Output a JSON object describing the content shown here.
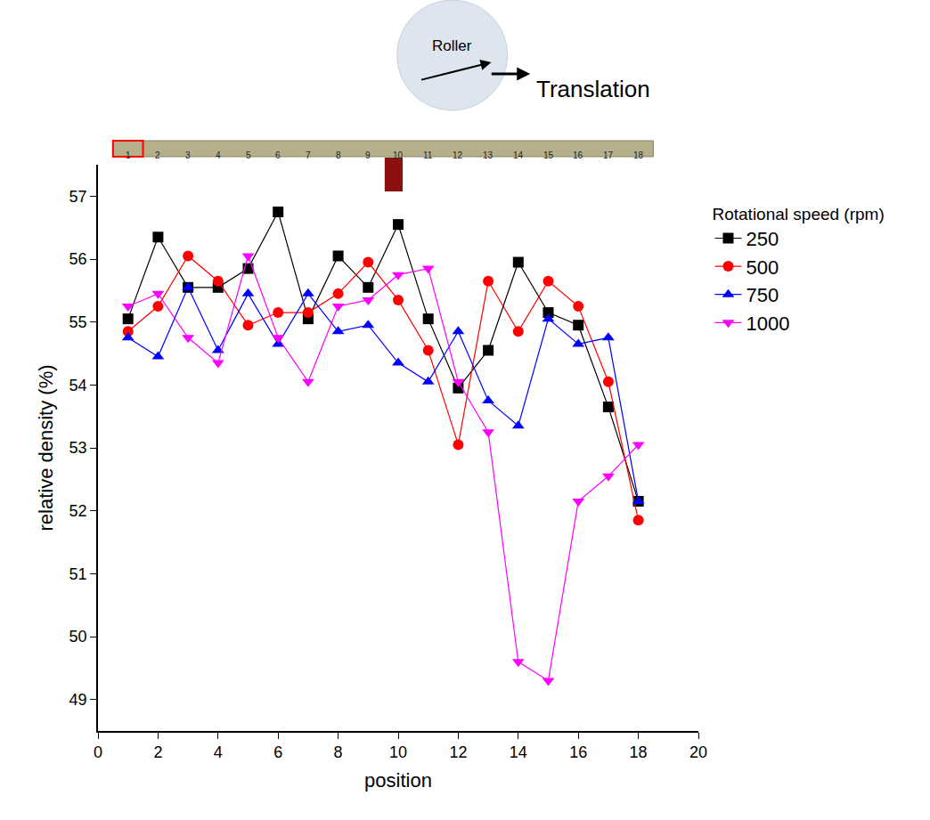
{
  "chart_data": {
    "type": "line",
    "xlabel": "position",
    "ylabel": "relative density (%)",
    "legend_title": "Rotational speed (rpm)",
    "annotations": [
      "Roller",
      "Translation"
    ],
    "x": [
      1,
      2,
      3,
      4,
      5,
      6,
      7,
      8,
      9,
      10,
      11,
      12,
      13,
      14,
      15,
      16,
      17,
      18
    ],
    "series": [
      {
        "name": "250",
        "color": "#000000",
        "marker": "square",
        "values": [
          55.05,
          56.35,
          55.55,
          55.55,
          55.85,
          56.75,
          55.05,
          56.05,
          55.55,
          56.55,
          55.05,
          53.95,
          54.55,
          55.95,
          55.15,
          54.95,
          53.65,
          52.15
        ]
      },
      {
        "name": "500",
        "color": "#ff0000",
        "marker": "circle",
        "values": [
          54.85,
          55.25,
          56.05,
          55.65,
          54.95,
          55.15,
          55.15,
          55.45,
          55.95,
          55.35,
          54.55,
          53.05,
          55.65,
          54.85,
          55.65,
          55.25,
          54.05,
          51.85
        ]
      },
      {
        "name": "750",
        "color": "#0000ff",
        "marker": "triangle-up",
        "values": [
          54.75,
          54.45,
          55.55,
          54.55,
          55.45,
          54.65,
          55.45,
          54.85,
          54.95,
          54.35,
          54.05,
          54.85,
          53.75,
          53.35,
          55.05,
          54.65,
          54.75,
          52.15
        ]
      },
      {
        "name": "1000",
        "color": "#ff00ff",
        "marker": "triangle-down",
        "values": [
          55.25,
          55.45,
          54.75,
          54.35,
          56.05,
          54.75,
          54.05,
          55.25,
          55.35,
          55.75,
          55.85,
          54.05,
          53.25,
          49.6,
          49.3,
          52.15,
          52.55,
          53.05
        ]
      }
    ],
    "xlim": [
      0,
      20
    ],
    "xticks": [
      0,
      2,
      4,
      6,
      8,
      10,
      12,
      14,
      16,
      18,
      20
    ],
    "ylim": [
      48.5,
      57.5
    ],
    "yticks": [
      49,
      50,
      51,
      52,
      53,
      54,
      55,
      56,
      57
    ],
    "grid": false,
    "legend": "right"
  }
}
